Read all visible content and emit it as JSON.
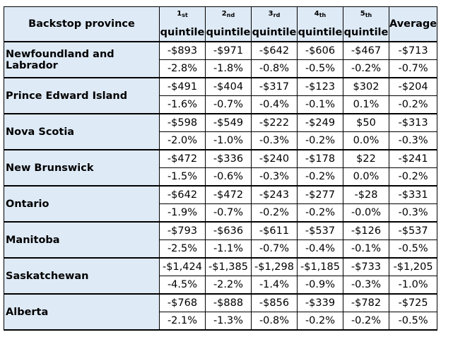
{
  "header": {
    "province": "Backstop province",
    "columns": [
      {
        "n": "1",
        "ord": "st",
        "label": "quintile"
      },
      {
        "n": "2",
        "ord": "nd",
        "label": "quintile"
      },
      {
        "n": "3",
        "ord": "rd",
        "label": "quintile"
      },
      {
        "n": "4",
        "ord": "th",
        "label": "quintile"
      },
      {
        "n": "5",
        "ord": "th",
        "label": "quintile"
      }
    ],
    "average": "Average"
  },
  "rows": [
    {
      "province": "Newfoundland and Labrador",
      "dollars": [
        "-$893",
        "-$971",
        "-$642",
        "-$606",
        "-$467",
        "-$713"
      ],
      "percent": [
        "-2.8%",
        "-1.8%",
        "-0.8%",
        "-0.5%",
        "-0.2%",
        "-0.7%"
      ]
    },
    {
      "province": "Prince Edward Island",
      "dollars": [
        "-$491",
        "-$404",
        "-$317",
        "-$123",
        "$302",
        "-$204"
      ],
      "percent": [
        "-1.6%",
        "-0.7%",
        "-0.4%",
        "-0.1%",
        "0.1%",
        "-0.2%"
      ]
    },
    {
      "province": "Nova Scotia",
      "dollars": [
        "-$598",
        "-$549",
        "-$222",
        "-$249",
        "$50",
        "-$313"
      ],
      "percent": [
        "-2.0%",
        "-1.0%",
        "-0.3%",
        "-0.2%",
        "0.0%",
        "-0.3%"
      ]
    },
    {
      "province": "New Brunswick",
      "dollars": [
        "-$472",
        "-$336",
        "-$240",
        "-$178",
        "$22",
        "-$241"
      ],
      "percent": [
        "-1.5%",
        "-0.6%",
        "-0.3%",
        "-0.2%",
        "0.0%",
        "-0.2%"
      ]
    },
    {
      "province": "Ontario",
      "dollars": [
        "-$642",
        "-$472",
        "-$243",
        "-$277",
        "-$28",
        "-$331"
      ],
      "percent": [
        "-1.9%",
        "-0.7%",
        "-0.2%",
        "-0.2%",
        "-0.0%",
        "-0.3%"
      ]
    },
    {
      "province": "Manitoba",
      "dollars": [
        "-$793",
        "-$636",
        "-$611",
        "-$537",
        "-$126",
        "-$537"
      ],
      "percent": [
        "-2.5%",
        "-1.1%",
        "-0.7%",
        "-0.4%",
        "-0.1%",
        "-0.5%"
      ]
    },
    {
      "province": "Saskatchewan",
      "dollars": [
        "-$1,424",
        "-$1,385",
        "-$1,298",
        "-$1,185",
        "-$733",
        "-$1,205"
      ],
      "percent": [
        "-4.5%",
        "-2.2%",
        "-1.4%",
        "-0.9%",
        "-0.3%",
        "-1.0%"
      ]
    },
    {
      "province": "Alberta",
      "dollars": [
        "-$768",
        "-$888",
        "-$856",
        "-$339",
        "-$782",
        "-$725"
      ],
      "percent": [
        "-2.1%",
        "-1.3%",
        "-0.8%",
        "-0.2%",
        "-0.2%",
        "-0.5%"
      ]
    }
  ]
}
